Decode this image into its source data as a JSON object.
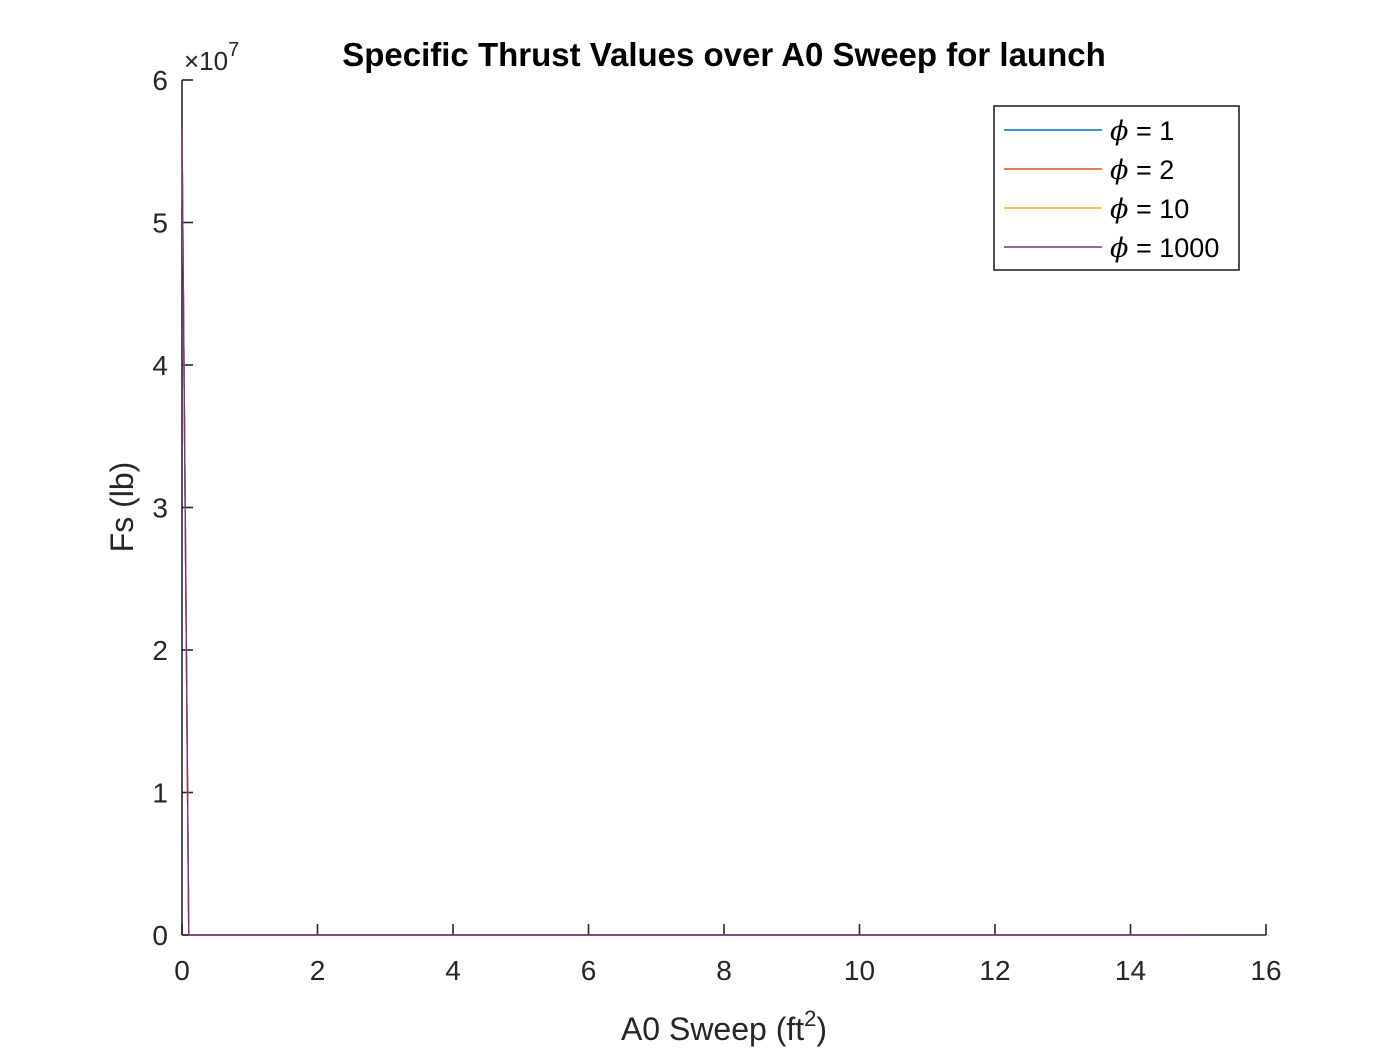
{
  "chart_data": {
    "type": "line",
    "title": "Specific Thrust Values over A0 Sweep for launch",
    "xlabel": "A0 Sweep (ft",
    "xlabel_sup": "2",
    "xlabel_end": ")",
    "ylabel": "Fs (lb)",
    "y_exponent": {
      "prefix": "×10",
      "power": "7"
    },
    "xlim": [
      0,
      16
    ],
    "ylim": [
      0,
      6
    ],
    "x_ticks": [
      "0",
      "2",
      "4",
      "6",
      "8",
      "10",
      "12",
      "14",
      "16"
    ],
    "y_ticks": [
      "0",
      "1",
      "2",
      "3",
      "4",
      "5",
      "6"
    ],
    "grid": false,
    "legend_placement": "top-right",
    "series": [
      {
        "name": "= 1",
        "symbol": "ϕ",
        "color": "#0072BD",
        "points": [
          [
            0,
            5.65
          ],
          [
            0.1,
            0.0
          ],
          [
            15,
            0.0
          ]
        ]
      },
      {
        "name": "= 2",
        "symbol": "ϕ",
        "color": "#D95319",
        "points": [
          [
            0,
            5.65
          ],
          [
            0.1,
            0.0
          ],
          [
            15,
            0.0
          ]
        ]
      },
      {
        "name": "= 10",
        "symbol": "ϕ",
        "color": "#EDB120",
        "points": [
          [
            0,
            5.65
          ],
          [
            0.1,
            0.0
          ],
          [
            15,
            0.0
          ]
        ]
      },
      {
        "name": "= 1000",
        "symbol": "ϕ",
        "color": "#7E2F8E",
        "points": [
          [
            0,
            5.65
          ],
          [
            0.1,
            0.0
          ],
          [
            15,
            0.0
          ]
        ]
      }
    ]
  }
}
